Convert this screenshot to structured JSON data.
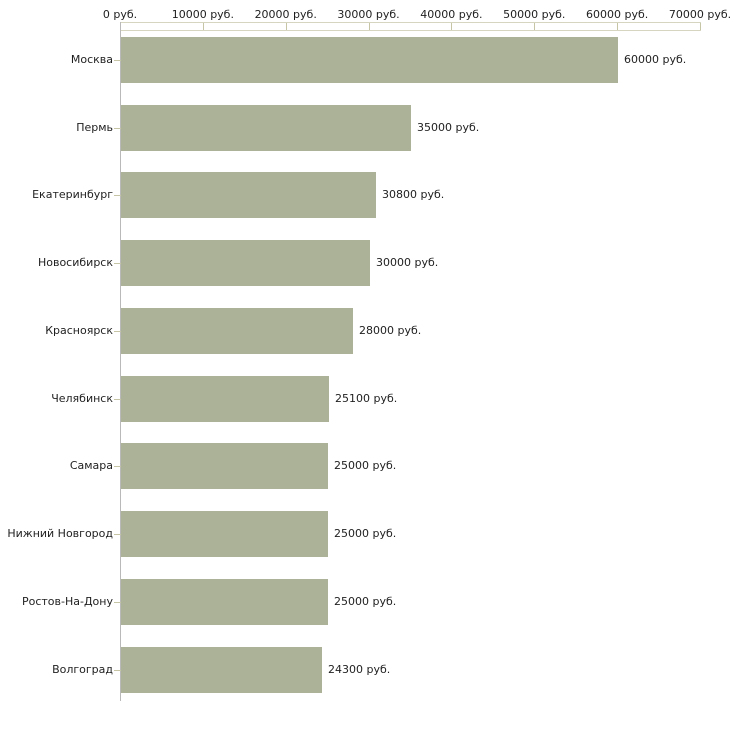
{
  "chart_data": {
    "type": "bar",
    "orientation": "horizontal",
    "title": "",
    "categories": [
      "Москва",
      "Пермь",
      "Екатеринбург",
      "Новосибирск",
      "Красноярск",
      "Челябинск",
      "Самара",
      "Нижний Новгород",
      "Ростов-На-Дону",
      "Волгоград"
    ],
    "values": [
      60000,
      35000,
      30800,
      30000,
      28000,
      25100,
      25000,
      25000,
      25000,
      24300
    ],
    "value_labels": [
      "60000 руб.",
      "35000 руб.",
      "30800 руб.",
      "30000 руб.",
      "28000 руб.",
      "25100 руб.",
      "25000 руб.",
      "25000 руб.",
      "25000 руб.",
      "24300 руб."
    ],
    "unit": "руб.",
    "xlabel": "",
    "ylabel": "",
    "x_axis": {
      "min": 0,
      "max": 70000,
      "tick_step": 10000,
      "tick_labels": [
        "0 руб.",
        "10000 руб.",
        "20000 руб.",
        "30000 руб.",
        "40000 руб.",
        "50000 руб.",
        "60000 руб.",
        "70000 руб."
      ],
      "position": "top"
    },
    "grid": false,
    "legend": false,
    "colors": {
      "bar": "#abb298",
      "axis_line": "#d6d6c0",
      "tick": "#c6c6a6",
      "category_tick": "#c6c6a6",
      "vertical_axis": "#b9b9b9",
      "text": "#1f1f1f",
      "background": "#ffffff"
    }
  }
}
